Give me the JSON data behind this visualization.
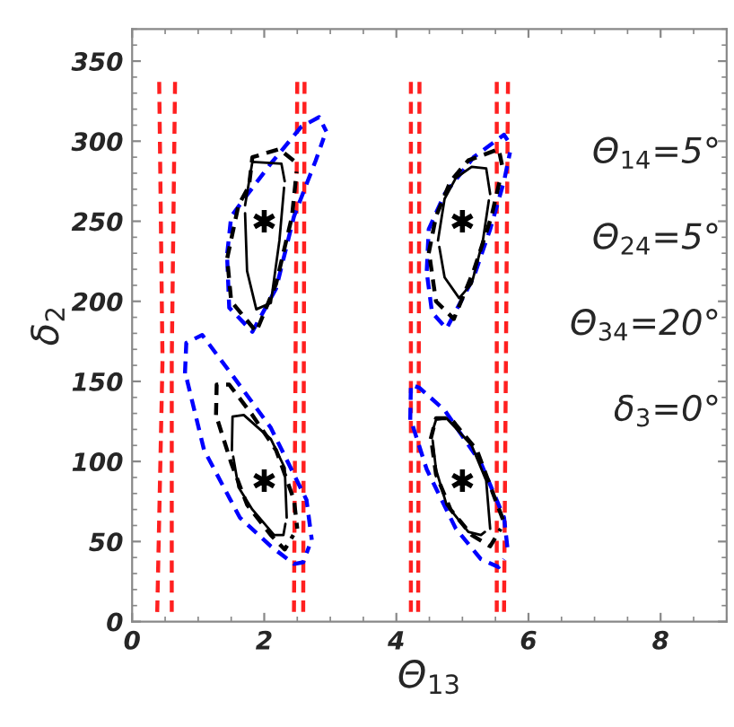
{
  "chart_data": {
    "type": "line",
    "xlabel": "Θ$_{13}$",
    "ylabel": "δ$_{2}$",
    "xlim": [
      0,
      9
    ],
    "ylim": [
      0,
      370
    ],
    "xticks": [
      0,
      2,
      4,
      6,
      8
    ],
    "yticks": [
      0,
      50,
      100,
      150,
      200,
      250,
      300,
      350
    ],
    "grid": false,
    "legend": false,
    "annotations": [
      "Θ$_{14}$=5°",
      "Θ$_{24}$=5°",
      "Θ$_{34}$=20°",
      "δ$_{3}$=0°"
    ],
    "series": [
      {
        "color": "#ff2020",
        "line_style": "dashed",
        "x": [
          0.41,
          0.46,
          0.38
        ],
        "values": [
          337,
          163,
          6
        ]
      },
      {
        "color": "#ff2020",
        "line_style": "dashed",
        "x": [
          0.65,
          0.6,
          0.6
        ],
        "values": [
          337,
          163,
          6
        ]
      },
      {
        "color": "#ff2020",
        "line_style": "dashed",
        "x": [
          2.5,
          2.45
        ],
        "values": [
          337,
          6
        ]
      },
      {
        "color": "#ff2020",
        "line_style": "dashed",
        "x": [
          2.61,
          2.59
        ],
        "values": [
          337,
          6
        ]
      },
      {
        "color": "#ff2020",
        "line_style": "dashed",
        "x": [
          4.22,
          4.22
        ],
        "values": [
          337,
          6
        ]
      },
      {
        "color": "#ff2020",
        "line_style": "dashed",
        "x": [
          4.35,
          4.33
        ],
        "values": [
          337,
          6
        ]
      },
      {
        "color": "#ff2020",
        "line_style": "dashed",
        "x": [
          5.52,
          5.52
        ],
        "values": [
          337,
          6
        ]
      },
      {
        "color": "#ff2020",
        "line_style": "dashed",
        "x": [
          5.69,
          5.63
        ],
        "values": [
          337,
          6
        ]
      },
      {
        "color": "#0000ff",
        "line_style": "dashed",
        "x": [
          1.44,
          1.5,
          1.75,
          2.1,
          2.56,
          2.83,
          2.94
        ],
        "values": [
          230,
          253,
          267,
          286,
          309,
          315,
          306
        ]
      },
      {
        "color": "#0000ff",
        "line_style": "dashed",
        "x": [
          1.44,
          1.47,
          1.82,
          2.18,
          2.45,
          2.78,
          2.9
        ],
        "values": [
          226,
          196,
          181,
          208,
          253,
          288,
          302
        ]
      },
      {
        "color": "#000000",
        "line_style": "dashed",
        "x": [
          1.44,
          1.61,
          1.77,
          1.82,
          2.23,
          2.5
        ],
        "values": [
          227,
          260,
          272,
          290,
          295,
          286
        ]
      },
      {
        "color": "#000000",
        "line_style": "dashed",
        "x": [
          1.45,
          1.5,
          1.88,
          2.18,
          2.42,
          2.49
        ],
        "values": [
          222,
          200,
          181,
          211,
          253,
          281
        ]
      },
      {
        "color": "#000000",
        "line_style": "solid",
        "x": [
          1.71,
          1.82,
          2.26,
          2.31
        ],
        "values": [
          260,
          287,
          286,
          275
        ]
      },
      {
        "color": "#000000",
        "line_style": "solid",
        "x": [
          1.71,
          1.74,
          1.88,
          2.1,
          2.23,
          2.3
        ],
        "values": [
          255,
          219,
          195,
          199,
          238,
          271
        ]
      },
      {
        "color": "#0000ff",
        "line_style": "dashed",
        "x": [
          0.8,
          0.82,
          1.06,
          1.55,
          2.1,
          2.64,
          2.72
        ],
        "values": [
          155,
          174,
          179,
          152,
          121,
          76,
          51
        ]
      },
      {
        "color": "#0000ff",
        "line_style": "dashed",
        "x": [
          0.83,
          1.09,
          1.63,
          2.1,
          2.45,
          2.59,
          2.68
        ],
        "values": [
          151,
          107,
          65,
          47,
          36,
          37,
          47
        ]
      },
      {
        "color": "#000000",
        "line_style": "dashed",
        "x": [
          1.27,
          1.28,
          1.47,
          1.82,
          2.18,
          2.45,
          2.5
        ],
        "values": [
          129,
          148,
          148,
          129,
          107,
          76,
          58
        ]
      },
      {
        "color": "#000000",
        "line_style": "dashed",
        "x": [
          1.3,
          1.5,
          1.74,
          2.1,
          2.31,
          2.44
        ],
        "values": [
          125,
          99,
          73,
          54,
          45,
          54
        ]
      },
      {
        "color": "#000000",
        "line_style": "solid",
        "x": [
          1.51,
          1.52,
          1.69,
          2.1,
          2.31,
          2.34
        ],
        "values": [
          107,
          128,
          129,
          114,
          96,
          65
        ]
      },
      {
        "color": "#000000",
        "line_style": "solid",
        "x": [
          1.53,
          1.61,
          1.82,
          2.15,
          2.29,
          2.32
        ],
        "values": [
          103,
          84,
          70,
          54,
          54,
          61
        ]
      },
      {
        "color": "#0000ff",
        "line_style": "dashed",
        "x": [
          4.46,
          4.49,
          4.73,
          5.17,
          5.63,
          5.74
        ],
        "values": [
          219,
          245,
          267,
          290,
          304,
          297
        ]
      },
      {
        "color": "#0000ff",
        "line_style": "dashed",
        "x": [
          4.47,
          4.54,
          4.76,
          5.17,
          5.42,
          5.63,
          5.72
        ],
        "values": [
          215,
          193,
          183,
          215,
          245,
          275,
          293
        ]
      },
      {
        "color": "#000000",
        "line_style": "dashed",
        "x": [
          4.49,
          4.6,
          4.82,
          5.09,
          5.55,
          5.61
        ],
        "values": [
          230,
          253,
          275,
          288,
          295,
          283
        ]
      },
      {
        "color": "#000000",
        "line_style": "dashed",
        "x": [
          4.51,
          4.6,
          4.87,
          5.17,
          5.44,
          5.58
        ],
        "values": [
          226,
          200,
          189,
          219,
          253,
          278
        ]
      },
      {
        "color": "#000000",
        "line_style": "solid",
        "x": [
          4.63,
          4.73,
          4.9,
          5.14,
          5.36,
          5.42
        ],
        "values": [
          238,
          264,
          277,
          284,
          283,
          267
        ]
      },
      {
        "color": "#000000",
        "line_style": "solid",
        "x": [
          4.65,
          4.73,
          4.95,
          5.14,
          5.31,
          5.4
        ],
        "values": [
          234,
          215,
          202,
          211,
          238,
          263
        ]
      },
      {
        "color": "#0000ff",
        "line_style": "dashed",
        "x": [
          4.21,
          4.22,
          4.35,
          4.73,
          5.28,
          5.63,
          5.69
        ],
        "values": [
          126,
          148,
          146,
          132,
          99,
          65,
          43
        ]
      },
      {
        "color": "#0000ff",
        "line_style": "dashed",
        "x": [
          4.25,
          4.46,
          4.9,
          5.28,
          5.55,
          5.63
        ],
        "values": [
          122,
          95,
          58,
          39,
          34,
          39
        ]
      },
      {
        "color": "#000000",
        "line_style": "dashed",
        "x": [
          4.52,
          4.6,
          4.82,
          5.22,
          5.5,
          5.63
        ],
        "values": [
          114,
          127,
          127,
          107,
          76,
          62
        ]
      },
      {
        "color": "#000000",
        "line_style": "dashed",
        "x": [
          4.54,
          4.6,
          4.82,
          5.14,
          5.42,
          5.58
        ],
        "values": [
          110,
          92,
          70,
          54,
          47,
          58
        ]
      },
      {
        "color": "#000000",
        "line_style": "solid",
        "x": [
          4.54,
          4.6,
          4.76,
          5.14,
          5.36,
          5.42
        ],
        "values": [
          118,
          126,
          127,
          110,
          88,
          58
        ]
      },
      {
        "color": "#000000",
        "line_style": "solid",
        "x": [
          4.55,
          4.6,
          4.76,
          5.09,
          5.28,
          5.34
        ],
        "values": [
          113,
          95,
          73,
          56,
          54,
          56
        ]
      },
      {
        "type": "scatter",
        "color": "#000000",
        "marker": "cross",
        "x": [
          2.0,
          5.0,
          2.0,
          5.0
        ],
        "values": [
          250,
          250,
          88,
          88
        ]
      }
    ]
  }
}
